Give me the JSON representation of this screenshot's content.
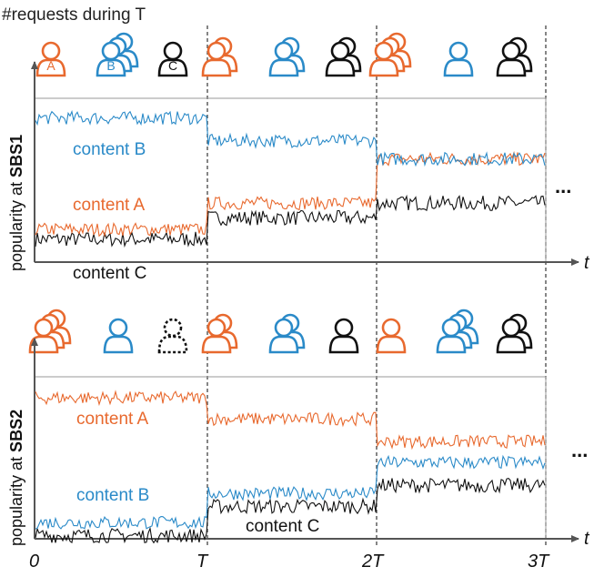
{
  "header": {
    "requests_label": "#requests during T"
  },
  "colors": {
    "content_a": "#e8692e",
    "content_b": "#2a8ac8",
    "content_c": "#111111",
    "axis": "#555555"
  },
  "icon_legend": {
    "a": "A",
    "b": "B",
    "c": "C"
  },
  "panels": [
    {
      "id": "sbs1",
      "ylabel_prefix": "popularity at ",
      "ylabel_station": "SBS1",
      "icon_groups": [
        [
          {
            "content": "a",
            "count": 1,
            "lettered": true
          },
          {
            "content": "b",
            "count": 3,
            "lettered": true
          },
          {
            "content": "c",
            "count": 1,
            "lettered": true
          }
        ],
        [
          {
            "content": "a",
            "count": 2
          },
          {
            "content": "b",
            "count": 2
          },
          {
            "content": "c",
            "count": 2
          }
        ],
        [
          {
            "content": "a",
            "count": 3
          },
          {
            "content": "b",
            "count": 1
          },
          {
            "content": "c",
            "count": 2
          }
        ]
      ],
      "labels": {
        "content_b": "content B",
        "content_a": "content A",
        "content_c": "content C"
      },
      "series_levels": {
        "a": [
          0.2,
          0.36,
          0.63
        ],
        "b": [
          0.88,
          0.74,
          0.63
        ],
        "c": [
          0.14,
          0.27,
          0.36
        ]
      }
    },
    {
      "id": "sbs2",
      "ylabel_prefix": "popularity at ",
      "ylabel_station": "SBS2",
      "icon_groups": [
        [
          {
            "content": "a",
            "count": 3
          },
          {
            "content": "b",
            "count": 1
          },
          {
            "content": "c",
            "count": 1,
            "dashed": true
          }
        ],
        [
          {
            "content": "a",
            "count": 2
          },
          {
            "content": "b",
            "count": 2
          },
          {
            "content": "c",
            "count": 1
          }
        ],
        [
          {
            "content": "a",
            "count": 1
          },
          {
            "content": "b",
            "count": 3
          },
          {
            "content": "c",
            "count": 2
          }
        ]
      ],
      "labels": {
        "content_a": "content A",
        "content_b": "content B",
        "content_c": "content C"
      },
      "series_levels": {
        "a": [
          0.87,
          0.74,
          0.6
        ],
        "b": [
          0.1,
          0.28,
          0.47
        ],
        "c": [
          0.02,
          0.2,
          0.33
        ]
      }
    }
  ],
  "time_axis": {
    "var": "t",
    "ticks": [
      "0",
      "T",
      "2T",
      "3T"
    ]
  },
  "continuation": "..."
}
